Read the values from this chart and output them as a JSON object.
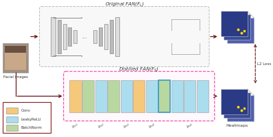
{
  "title_original": "Original FAN($F_L$)",
  "title_distilled": "Distilled FAN($F_S$)",
  "legend_items": [
    {
      "label": "Conv",
      "color": "#f5c87a"
    },
    {
      "label": "LeakyReLU",
      "color": "#aaddee"
    },
    {
      "label": "BatchNorm",
      "color": "#b8d8a0"
    }
  ],
  "distilled_blocks": [
    "#f5c87a",
    "#b8d8a0",
    "#aaddee",
    "#b8d8a0",
    "#aaddee",
    "#f5c87a",
    "#aaddee",
    "#b8d8a0",
    "#aaddee",
    "#aaddee",
    "#aaddee"
  ],
  "distilled_labels": [
    "$b_{lo1}$",
    "$b_{lo2}$",
    "$b_{lo3}$",
    "$b_{lo4}$",
    "$b_{lo5}$"
  ],
  "heatmap_colors": [
    "#5060b0",
    "#3a4a95",
    "#2a3a85"
  ],
  "heatmap_dot_color": "#ffdd00",
  "arrow_color": "#6b1515",
  "face_label": "Facial images",
  "l2_loss_label": "L2 Loss",
  "heatmaps_label": "Heatmaps",
  "background": "#ffffff",
  "fan_box_edge": "#bbbbbb",
  "distilled_box_edge": "#ee44aa",
  "legend_box_edge": "#8b1a1a",
  "fan_gray_light": "#dddddd",
  "fan_gray_dark": "#bbbbbb",
  "line_color": "#555555",
  "face_colors": [
    "#7a6858",
    "#9a8878"
  ]
}
